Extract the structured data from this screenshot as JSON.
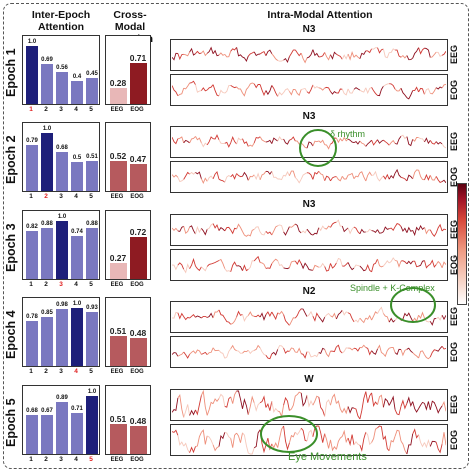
{
  "headers": {
    "inter_epoch": "Inter-Epoch Attention",
    "cross_modal": "Cross-Modal Attention",
    "intra_modal": "Intra-Modal Attention"
  },
  "colors": {
    "bar_current": "#1e1f7a",
    "bar_other": "#7a78c0",
    "tick_highlight": "#e02020",
    "cross_low": "#e8b7b7",
    "cross_high": "#8e1b22",
    "annotation": "#3a8f2a"
  },
  "modality_labels": {
    "eeg": "EEG",
    "eog": "EOG"
  },
  "annotations": {
    "delta": "δ rhythm",
    "spindle": "Spindle + K-Complex",
    "eye": "Eye Movements"
  },
  "epochs": [
    {
      "label": "Epoch 1",
      "stage": "N3",
      "current": 1,
      "inter": {
        "categories": [
          "1",
          "2",
          "3",
          "4",
          "5"
        ],
        "values": [
          1.0,
          0.69,
          0.56,
          0.4,
          0.45
        ],
        "labels": [
          "1.0",
          "0.69",
          "0.56",
          "0.4",
          "0.45"
        ]
      },
      "cross": {
        "categories": [
          "EEG",
          "EOG"
        ],
        "values": [
          0.28,
          0.71
        ],
        "labels": [
          "0.28",
          "0.71"
        ]
      }
    },
    {
      "label": "Epoch 2",
      "stage": "N3",
      "current": 2,
      "inter": {
        "categories": [
          "1",
          "2",
          "3",
          "4",
          "5"
        ],
        "values": [
          0.79,
          1.0,
          0.68,
          0.5,
          0.51
        ],
        "labels": [
          "0.79",
          "1.0",
          "0.68",
          "0.5",
          "0.51"
        ]
      },
      "cross": {
        "categories": [
          "EEG",
          "EOG"
        ],
        "values": [
          0.52,
          0.47
        ],
        "labels": [
          "0.52",
          "0.47"
        ]
      }
    },
    {
      "label": "Epoch 3",
      "stage": "N3",
      "current": 3,
      "inter": {
        "categories": [
          "1",
          "2",
          "3",
          "4",
          "5"
        ],
        "values": [
          0.82,
          0.88,
          1.0,
          0.74,
          0.88
        ],
        "labels": [
          "0.82",
          "0.88",
          "1.0",
          "0.74",
          "0.88"
        ]
      },
      "cross": {
        "categories": [
          "EEG",
          "EOG"
        ],
        "values": [
          0.27,
          0.72
        ],
        "labels": [
          "0.27",
          "0.72"
        ]
      }
    },
    {
      "label": "Epoch 4",
      "stage": "N2",
      "current": 4,
      "inter": {
        "categories": [
          "1",
          "2",
          "3",
          "4",
          "5"
        ],
        "values": [
          0.78,
          0.85,
          0.98,
          1.0,
          0.93
        ],
        "labels": [
          "0.78",
          "0.85",
          "0.98",
          "1.0",
          "0.93"
        ]
      },
      "cross": {
        "categories": [
          "EEG",
          "EOG"
        ],
        "values": [
          0.51,
          0.48
        ],
        "labels": [
          "0.51",
          "0.48"
        ]
      }
    },
    {
      "label": "Epoch 5",
      "stage": "W",
      "current": 5,
      "inter": {
        "categories": [
          "1",
          "2",
          "3",
          "4",
          "5"
        ],
        "values": [
          0.68,
          0.67,
          0.89,
          0.71,
          1.0
        ],
        "labels": [
          "0.68",
          "0.67",
          "0.89",
          "0.71",
          "1.0"
        ]
      },
      "cross": {
        "categories": [
          "EEG",
          "EOG"
        ],
        "values": [
          0.51,
          0.48
        ],
        "labels": [
          "0.51",
          "0.48"
        ]
      }
    }
  ]
}
